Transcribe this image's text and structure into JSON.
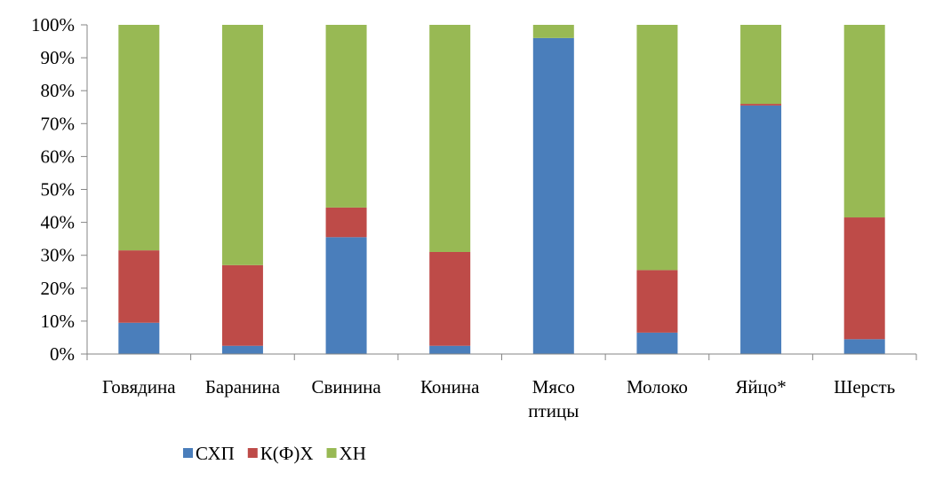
{
  "chart_data": {
    "type": "bar",
    "stacked": true,
    "percent": true,
    "categories": [
      [
        "Говядина"
      ],
      [
        "Баранина"
      ],
      [
        "Свинина"
      ],
      [
        "Конина"
      ],
      [
        "Мясо",
        "птицы"
      ],
      [
        "Молоко"
      ],
      [
        "Яйцо*"
      ],
      [
        "Шерсть"
      ]
    ],
    "series": [
      {
        "name": "СХП",
        "color": "#4a7ebb",
        "values": [
          9.5,
          2.5,
          35.5,
          2.5,
          96.0,
          6.5,
          75.5,
          4.5
        ]
      },
      {
        "name": "К(Ф)Х",
        "color": "#be4b48",
        "values": [
          22.0,
          24.5,
          9.0,
          28.5,
          0.0,
          19.0,
          0.5,
          37.0
        ]
      },
      {
        "name": "ХН",
        "color": "#98b954",
        "values": [
          68.5,
          73.0,
          55.5,
          69.0,
          4.0,
          74.5,
          24.0,
          58.5
        ]
      }
    ],
    "y_ticks": [
      "0%",
      "10%",
      "20%",
      "30%",
      "40%",
      "50%",
      "60%",
      "70%",
      "80%",
      "90%",
      "100%"
    ],
    "ylim": [
      0,
      100
    ],
    "grid": false,
    "legend_position": "bottom-left"
  }
}
